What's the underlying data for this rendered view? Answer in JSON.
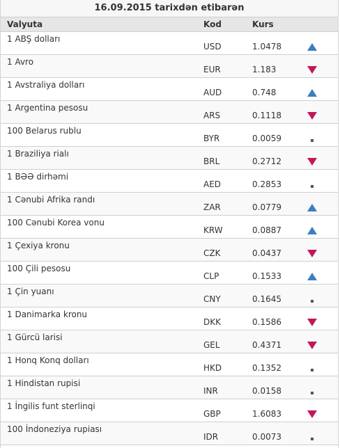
{
  "title": "16.09.2015 tarixdən etibarən",
  "columns": {
    "currency": "Valyuta",
    "code": "Kod",
    "rate": "Kurs"
  },
  "trend_colors": {
    "up": "#3a7fc0",
    "down": "#c2185b",
    "flat": "#555555"
  },
  "rows": [
    {
      "name": "1 ABŞ dolları",
      "code": "USD",
      "rate": "1.0478",
      "trend": "up"
    },
    {
      "name": "1 Avro",
      "code": "EUR",
      "rate": "1.183",
      "trend": "down"
    },
    {
      "name": "1 Avstraliya dolları",
      "code": "AUD",
      "rate": "0.748",
      "trend": "up"
    },
    {
      "name": "1 Argentina pesosu",
      "code": "ARS",
      "rate": "0.1118",
      "trend": "down"
    },
    {
      "name": "100 Belarus rublu",
      "code": "BYR",
      "rate": "0.0059",
      "trend": "flat"
    },
    {
      "name": "1 Braziliya rialı",
      "code": "BRL",
      "rate": "0.2712",
      "trend": "down"
    },
    {
      "name": "1 BƏƏ dirhəmi",
      "code": "AED",
      "rate": "0.2853",
      "trend": "flat"
    },
    {
      "name": "1 Cənubi Afrika randı",
      "code": "ZAR",
      "rate": "0.0779",
      "trend": "up"
    },
    {
      "name": "100 Cənubi Korea vonu",
      "code": "KRW",
      "rate": "0.0887",
      "trend": "up"
    },
    {
      "name": "1 Çexiya kronu",
      "code": "CZK",
      "rate": "0.0437",
      "trend": "down"
    },
    {
      "name": "100 Çili pesosu",
      "code": "CLP",
      "rate": "0.1533",
      "trend": "up"
    },
    {
      "name": "1 Çin yuanı",
      "code": "CNY",
      "rate": "0.1645",
      "trend": "flat"
    },
    {
      "name": "1 Danimarka kronu",
      "code": "DKK",
      "rate": "0.1586",
      "trend": "down"
    },
    {
      "name": "1 Gürcü larisi",
      "code": "GEL",
      "rate": "0.4371",
      "trend": "down"
    },
    {
      "name": "1 Honq Konq dolları",
      "code": "HKD",
      "rate": "0.1352",
      "trend": "flat"
    },
    {
      "name": "1 Hindistan rupisi",
      "code": "INR",
      "rate": "0.0158",
      "trend": "flat"
    },
    {
      "name": "1 İngilis funt sterlinqi",
      "code": "GBP",
      "rate": "1.6083",
      "trend": "down"
    },
    {
      "name": "100 İndoneziya rupiası",
      "code": "IDR",
      "rate": "0.0073",
      "trend": "flat"
    }
  ]
}
